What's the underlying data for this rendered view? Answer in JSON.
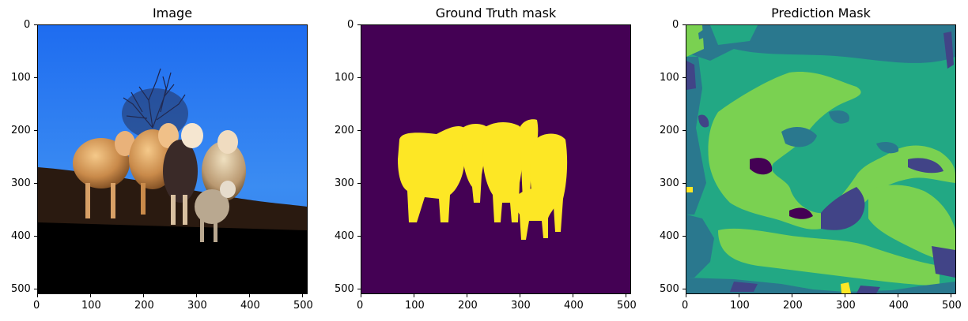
{
  "panels": [
    {
      "title": "Image",
      "x_ticks": [
        "0",
        "100",
        "200",
        "300",
        "400",
        "500"
      ],
      "y_ticks": [
        "0",
        "100",
        "200",
        "300",
        "400",
        "500"
      ],
      "content": "photo-sheep-on-hill"
    },
    {
      "title": "Ground Truth mask",
      "x_ticks": [
        "0",
        "100",
        "200",
        "300",
        "400",
        "500"
      ],
      "y_ticks": [
        "0",
        "100",
        "200",
        "300",
        "400",
        "500"
      ],
      "content": "binary-mask",
      "colors": {
        "background": "#440154",
        "foreground": "#fde725"
      }
    },
    {
      "title": "Prediction Mask",
      "x_ticks": [
        "0",
        "100",
        "200",
        "300",
        "400",
        "500"
      ],
      "y_ticks": [
        "0",
        "100",
        "200",
        "300",
        "400",
        "500"
      ],
      "content": "multiclass-mask",
      "colors": {
        "teal": "#2a788e",
        "green": "#22a884",
        "light_green": "#7ad151",
        "purple": "#414487",
        "dark": "#440154",
        "yellow": "#fde725"
      }
    }
  ]
}
